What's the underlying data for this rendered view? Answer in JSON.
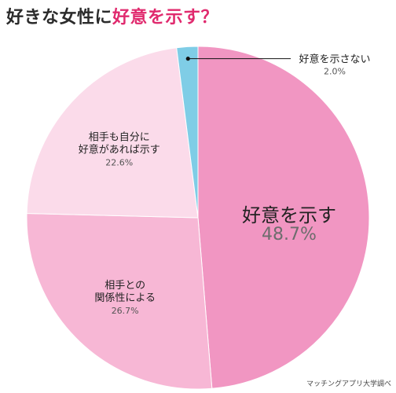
{
  "title": {
    "part1": "好きな女性に",
    "part2": "好意を示す？"
  },
  "credit": "マッチングアプリ大学調べ",
  "colors": {
    "title_dark": "#2b2b2b",
    "title_accent": "#e02a6e"
  },
  "chart_data": {
    "type": "pie",
    "start": "12 o'clock",
    "direction": "clockwise",
    "slices": [
      {
        "label_lines": [
          "好意を示す"
        ],
        "pct": "48.7%",
        "value": 48.7,
        "color": "#f196c2"
      },
      {
        "label_lines": [
          "相手との",
          "関係性による"
        ],
        "pct": "26.7%",
        "value": 26.7,
        "color": "#f7b7d5"
      },
      {
        "label_lines": [
          "相手も自分に",
          "好意があれば示す"
        ],
        "pct": "22.6%",
        "value": 22.6,
        "color": "#fbdbea"
      },
      {
        "label_lines": [
          "好意を示さない"
        ],
        "pct": "2.0%",
        "value": 2.0,
        "color": "#7fcde6"
      }
    ]
  }
}
